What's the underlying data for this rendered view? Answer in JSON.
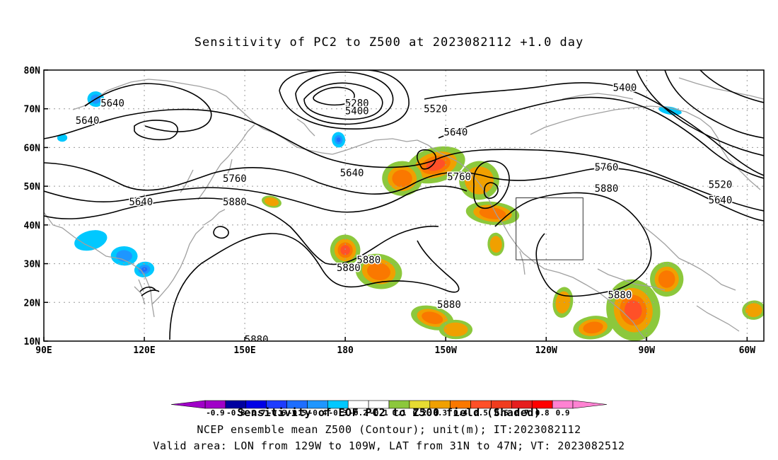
{
  "title": "Sensitivity of PC2 to Z500 at 2023082112 +1.0 day",
  "map": {
    "lon_range": [
      90,
      305
    ],
    "lat_range": [
      10,
      80
    ],
    "lon_ticks": [
      "90E",
      "120E",
      "150E",
      "180",
      "150W",
      "120W",
      "90W",
      "60W"
    ],
    "lat_ticks": [
      "10N",
      "20N",
      "30N",
      "40N",
      "50N",
      "60N",
      "70N",
      "80N"
    ],
    "box": {
      "lon": [
        231,
        251
      ],
      "lat": [
        31,
        47
      ]
    },
    "contour_labels": [
      {
        "text": "5640",
        "lon": 110.5,
        "lat": 71.5
      },
      {
        "text": "5640",
        "lon": 103,
        "lat": 67
      },
      {
        "text": "5640",
        "lon": 119,
        "lat": 46
      },
      {
        "text": "5760",
        "lon": 147,
        "lat": 52
      },
      {
        "text": "5880",
        "lon": 147,
        "lat": 46
      },
      {
        "text": "5640",
        "lon": 182,
        "lat": 53.5
      },
      {
        "text": "5280",
        "lon": 183.5,
        "lat": 71.5
      },
      {
        "text": "5400",
        "lon": 183.5,
        "lat": 69.5
      },
      {
        "text": "5520",
        "lon": 207,
        "lat": 70
      },
      {
        "text": "5640",
        "lon": 213,
        "lat": 64
      },
      {
        "text": "5760",
        "lon": 214,
        "lat": 52.5
      },
      {
        "text": "5760",
        "lon": 258,
        "lat": 55
      },
      {
        "text": "5880",
        "lon": 258,
        "lat": 49.5
      },
      {
        "text": "5400",
        "lon": 263.5,
        "lat": 75.5
      },
      {
        "text": "5520",
        "lon": 292,
        "lat": 50.5
      },
      {
        "text": "5640",
        "lon": 292,
        "lat": 46.5
      },
      {
        "text": "5880",
        "lon": 181,
        "lat": 29
      },
      {
        "text": "5880",
        "lon": 187,
        "lat": 31
      },
      {
        "text": "5880",
        "lon": 211,
        "lat": 19.5
      },
      {
        "text": "5880",
        "lon": 262,
        "lat": 22
      },
      {
        "text": "5880",
        "lon": 153.5,
        "lat": 10.5
      }
    ],
    "positive_regions": [
      {
        "lon": 207,
        "lat": 55.5,
        "rx": 9,
        "ry": 4.5,
        "level": 0.8
      },
      {
        "lon": 197,
        "lat": 52,
        "rx": 6,
        "ry": 4.5,
        "level": 0.6
      },
      {
        "lon": 220,
        "lat": 51.5,
        "rx": 6,
        "ry": 5,
        "level": 0.3
      },
      {
        "lon": 224,
        "lat": 43,
        "rx": 8,
        "ry": 3,
        "level": 0.6
      },
      {
        "lon": 180,
        "lat": 33.5,
        "rx": 4.5,
        "ry": 4,
        "level": 0.7
      },
      {
        "lon": 190,
        "lat": 28,
        "rx": 7,
        "ry": 4.5,
        "level": 0.6
      },
      {
        "lon": 225,
        "lat": 35,
        "rx": 2.5,
        "ry": 3,
        "level": 0.3
      },
      {
        "lon": 206,
        "lat": 16,
        "rx": 6.5,
        "ry": 3,
        "level": 0.5
      },
      {
        "lon": 213,
        "lat": 13,
        "rx": 5,
        "ry": 2.5,
        "level": 0.4
      },
      {
        "lon": 266,
        "lat": 18,
        "rx": 8,
        "ry": 8,
        "level": 0.9
      },
      {
        "lon": 276,
        "lat": 26,
        "rx": 5,
        "ry": 4.5,
        "level": 0.6
      },
      {
        "lon": 254,
        "lat": 13.5,
        "rx": 6,
        "ry": 3,
        "level": 0.6
      },
      {
        "lon": 245,
        "lat": 20,
        "rx": 3,
        "ry": 4,
        "level": 0.3
      },
      {
        "lon": 302,
        "lat": 18,
        "rx": 3.5,
        "ry": 2.5,
        "level": 0.4
      },
      {
        "lon": 158,
        "lat": 46,
        "rx": 3,
        "ry": 1.5,
        "level": 0.3
      }
    ],
    "negative_regions": [
      {
        "lon": 104,
        "lat": 36,
        "rx": 5,
        "ry": 2.5,
        "level": -0.3
      },
      {
        "lon": 114,
        "lat": 32,
        "rx": 4,
        "ry": 2.5,
        "level": -0.4
      },
      {
        "lon": 120,
        "lat": 28.5,
        "rx": 3,
        "ry": 2,
        "level": -0.6
      },
      {
        "lon": 105.5,
        "lat": 72.5,
        "rx": 2.5,
        "ry": 2,
        "level": -0.4
      },
      {
        "lon": 178,
        "lat": 62,
        "rx": 2,
        "ry": 2,
        "level": -0.6
      },
      {
        "lon": 277,
        "lat": 69.5,
        "rx": 3.5,
        "ry": 1,
        "level": -0.3
      },
      {
        "lon": 95.5,
        "lat": 62.5,
        "rx": 1.5,
        "ry": 1,
        "level": -0.3
      }
    ]
  },
  "colorbar": {
    "labels": [
      "-0.9",
      "-0.8",
      "-0.7",
      "-0.6",
      "-0.5",
      "-0.4",
      "-0.3",
      "-0.2",
      "-0.1",
      "0.1",
      "0.2",
      "0.3",
      "0.4",
      "0.5",
      "0.6",
      "0.7",
      "0.8",
      "0.9"
    ],
    "colors": [
      "#a000c8",
      "#0000a0",
      "#0000e6",
      "#1e3cff",
      "#1e6eff",
      "#1e96ff",
      "#00c8ff",
      "#ffffff",
      "#ffffff",
      "#8cc83c",
      "#e6dc32",
      "#f0a000",
      "#fa7800",
      "#ff5028",
      "#f03c1e",
      "#e61e1e",
      "#ff0000",
      "#ff82d2"
    ],
    "overlay_text": "Sensitivity of EOF PC2 to Z500 field (Shaded)"
  },
  "captions": [
    "NCEP ensemble mean Z500 (Contour); unit(m); IT:2023082112",
    "Valid area: LON from 129W to 109W, LAT from 31N to 47N; VT: 2023082512"
  ]
}
